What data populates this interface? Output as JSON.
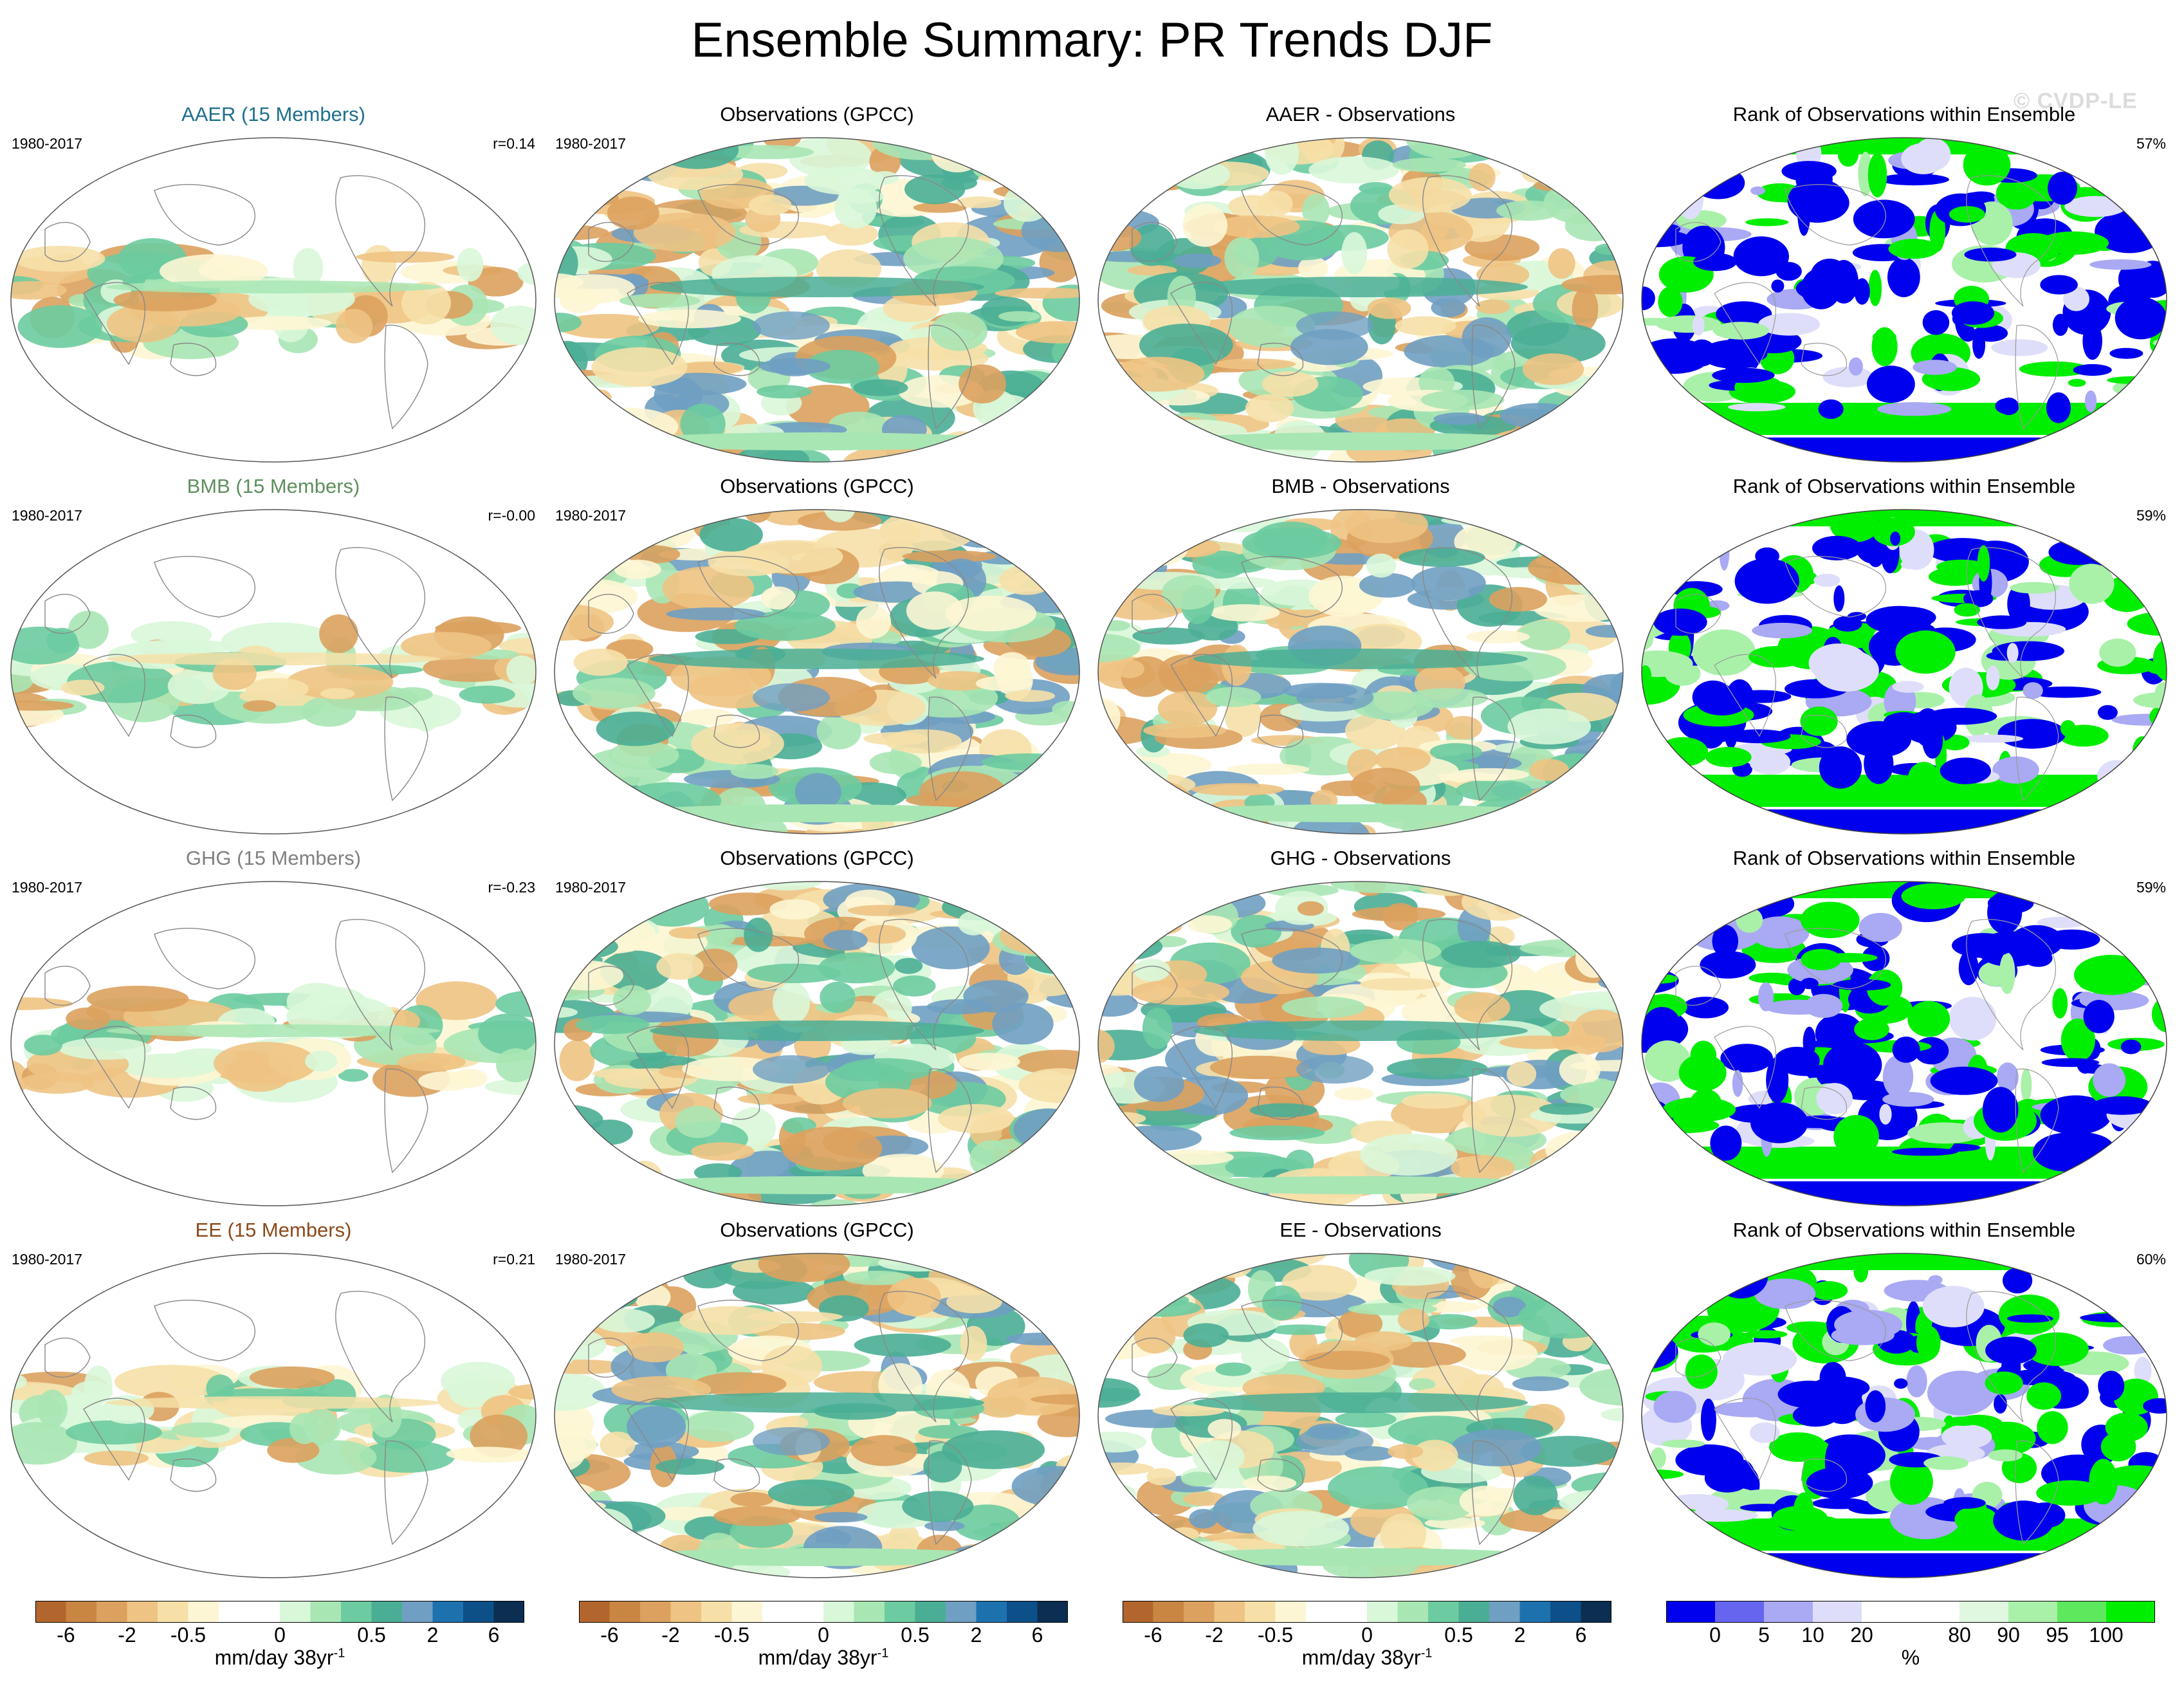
{
  "title": "Ensemble Summary: PR Trends DJF",
  "watermark": "© CVDP-LE",
  "palettes": {
    "trend": [
      "#b3652e",
      "#c98542",
      "#dca15e",
      "#eec383",
      "#f6e0a8",
      "#fdf6d4",
      "#ffffff",
      "#ffffff",
      "#d9f7d9",
      "#a8e6b4",
      "#6ccba0",
      "#4aae95",
      "#6f9fc2",
      "#1d72ae",
      "#0d4f88",
      "#0b2e52"
    ],
    "rank": [
      "#0000ee",
      "#6565f0",
      "#a9a9f4",
      "#dedefa",
      "#ffffff",
      "#ffffff",
      "#dff8df",
      "#a9f0a9",
      "#5ee85e",
      "#00ee00"
    ]
  },
  "colorbars": [
    {
      "ticks": [
        "-6",
        "-2",
        "-0.5",
        "0",
        "0.5",
        "2",
        "6"
      ],
      "unit": "mm/day 38yr",
      "unit_sup": "-1"
    },
    {
      "ticks": [
        "-6",
        "-2",
        "-0.5",
        "0",
        "0.5",
        "2",
        "6"
      ],
      "unit": "mm/day 38yr",
      "unit_sup": "-1"
    },
    {
      "ticks": [
        "-6",
        "-2",
        "-0.5",
        "0",
        "0.5",
        "2",
        "6"
      ],
      "unit": "mm/day 38yr",
      "unit_sup": "-1"
    },
    {
      "ticks": [
        "0",
        "5",
        "10",
        "20",
        "80",
        "90",
        "95",
        "100"
      ],
      "unit": "%",
      "unit_sup": ""
    }
  ],
  "rows": [
    {
      "ensemble": {
        "title": "AAER (15 Members)",
        "color": "#1f6f8b",
        "period": "1980-2017",
        "stat": "r=0.14"
      },
      "obs": {
        "title": "Observations (GPCC)",
        "period": "1980-2017"
      },
      "diff": {
        "title": "AAER - Observations"
      },
      "rank": {
        "title": "Rank of Observations within Ensemble",
        "stat": "57%"
      }
    },
    {
      "ensemble": {
        "title": "BMB (15 Members)",
        "color": "#5e8f5e",
        "period": "1980-2017",
        "stat": "r=-0.00"
      },
      "obs": {
        "title": "Observations (GPCC)",
        "period": "1980-2017"
      },
      "diff": {
        "title": "BMB - Observations"
      },
      "rank": {
        "title": "Rank of Observations within Ensemble",
        "stat": "59%"
      }
    },
    {
      "ensemble": {
        "title": "GHG (15 Members)",
        "color": "#808080",
        "period": "1980-2017",
        "stat": "r=-0.23"
      },
      "obs": {
        "title": "Observations (GPCC)",
        "period": "1980-2017"
      },
      "diff": {
        "title": "GHG - Observations"
      },
      "rank": {
        "title": "Rank of Observations within Ensemble",
        "stat": "59%"
      }
    },
    {
      "ensemble": {
        "title": "EE (15 Members)",
        "color": "#8b4a1c",
        "period": "1980-2017",
        "stat": "r=0.21"
      },
      "obs": {
        "title": "Observations (GPCC)",
        "period": "1980-2017"
      },
      "diff": {
        "title": "EE - Observations"
      },
      "rank": {
        "title": "Rank of Observations within Ensemble",
        "stat": "60%"
      }
    }
  ]
}
